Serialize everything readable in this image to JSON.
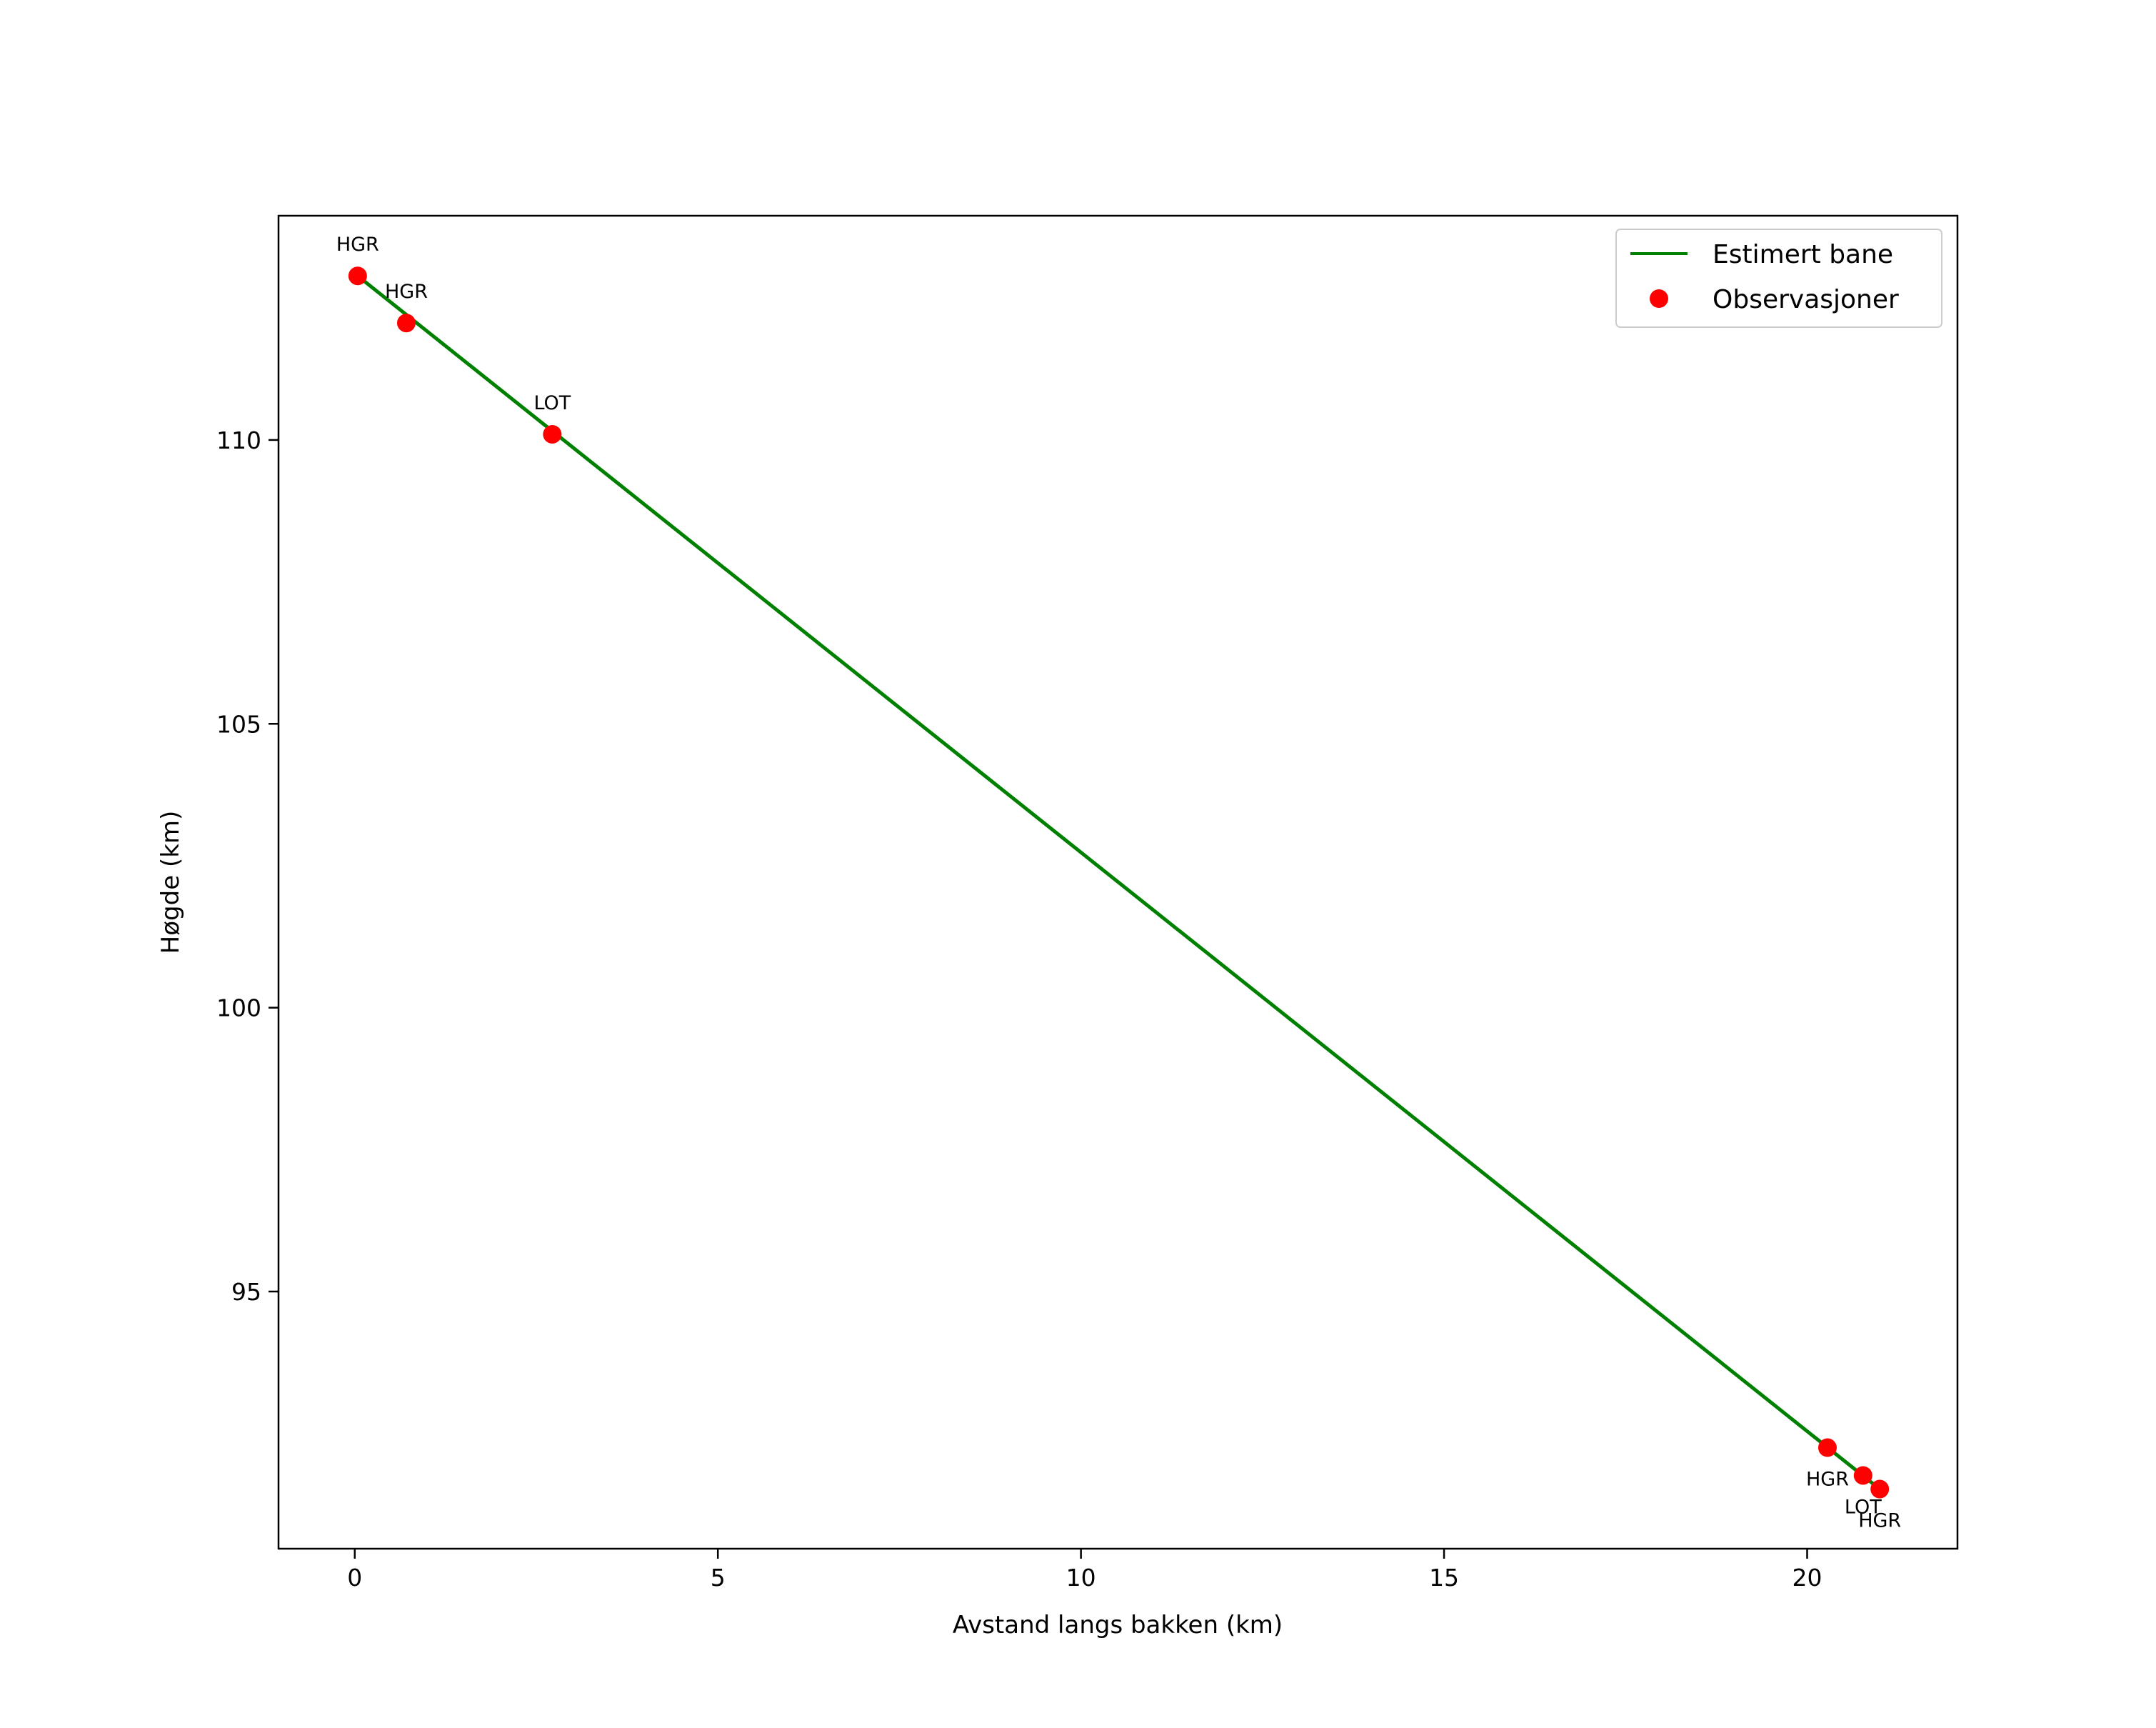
{
  "chart_data": {
    "type": "line",
    "title": "",
    "xlabel": "Avstand langs bakken (km)",
    "ylabel": "Høgde (km)",
    "xlim": [
      -1.05,
      22.07
    ],
    "ylim": [
      90.47,
      113.95
    ],
    "xticks": [
      0,
      5,
      10,
      15,
      20
    ],
    "yticks": [
      95,
      100,
      105,
      110
    ],
    "grid": false,
    "legend_position": "top-right",
    "series": [
      {
        "name": "Estimert bane",
        "type": "line",
        "color": "#008000",
        "x": [
          0.04,
          21.0
        ],
        "y": [
          112.89,
          91.52
        ]
      },
      {
        "name": "Observasjoner",
        "type": "scatter",
        "color": "#ff0000",
        "x": [
          0.04,
          0.71,
          2.72,
          20.28,
          20.77,
          21.0
        ],
        "y": [
          112.89,
          112.06,
          110.1,
          92.25,
          91.76,
          91.52
        ],
        "labels": [
          "HGR",
          "HGR",
          "LOT",
          "HGR",
          "LOT",
          "HGR"
        ]
      }
    ]
  }
}
